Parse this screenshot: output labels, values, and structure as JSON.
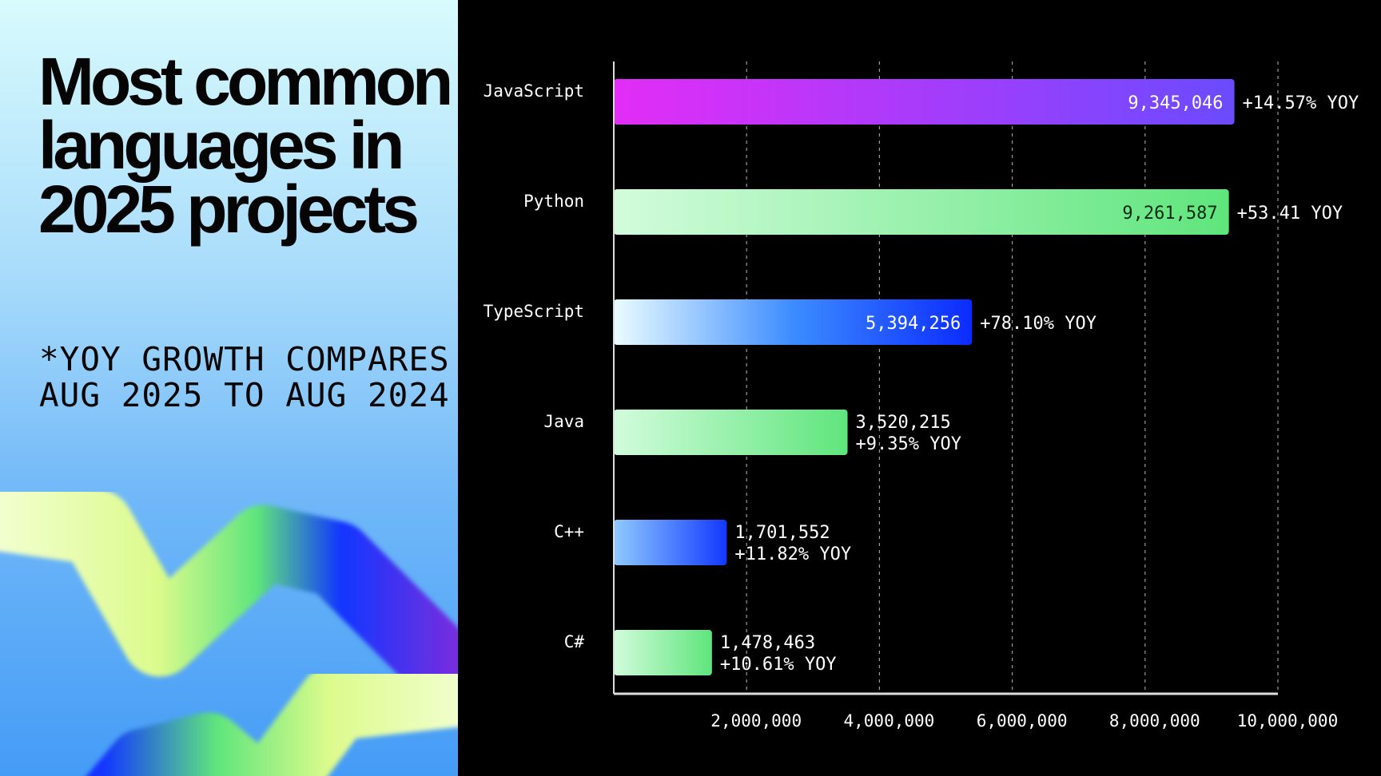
{
  "title": "Most common languages in 2025 projects",
  "footnote": "*YOY GROWTH COMPARES AUG 2025 TO AUG 2024",
  "chart_data": {
    "type": "bar",
    "orientation": "horizontal",
    "categories": [
      "JavaScript",
      "Python",
      "TypeScript",
      "Java",
      "C++",
      "C#"
    ],
    "values": [
      9345046,
      9261587,
      5394256,
      3520215,
      1701552,
      1478463
    ],
    "value_labels": [
      "9,345,046",
      "9,261,587",
      "5,394,256",
      "3,520,215",
      "1,701,552",
      "1,478,463"
    ],
    "yoy_labels": [
      "+14.57% YOY",
      "+53.41 YOY",
      "+78.10% YOY",
      "+9.35% YOY",
      "+11.82% YOY",
      "+10.61% YOY"
    ],
    "xlim": [
      0,
      10000000
    ],
    "x_ticks": [
      2000000,
      4000000,
      6000000,
      8000000,
      10000000
    ],
    "x_tick_labels": [
      "2,000,000",
      "4,000,000",
      "6,000,000",
      "8,000,000",
      "10,000,000"
    ],
    "grid": "vertical dashed",
    "bar_colors": [
      [
        "#e22df6",
        "#6b4bff"
      ],
      [
        "#d2fcdc",
        "#5fe57c"
      ],
      [
        "#eafcff",
        "#0b2bff"
      ],
      [
        "#d2fcdc",
        "#5fe57c"
      ],
      [
        "#8fcbff",
        "#1238ff"
      ],
      [
        "#d2fcdc",
        "#5fe57c"
      ]
    ],
    "background": "#000000"
  }
}
